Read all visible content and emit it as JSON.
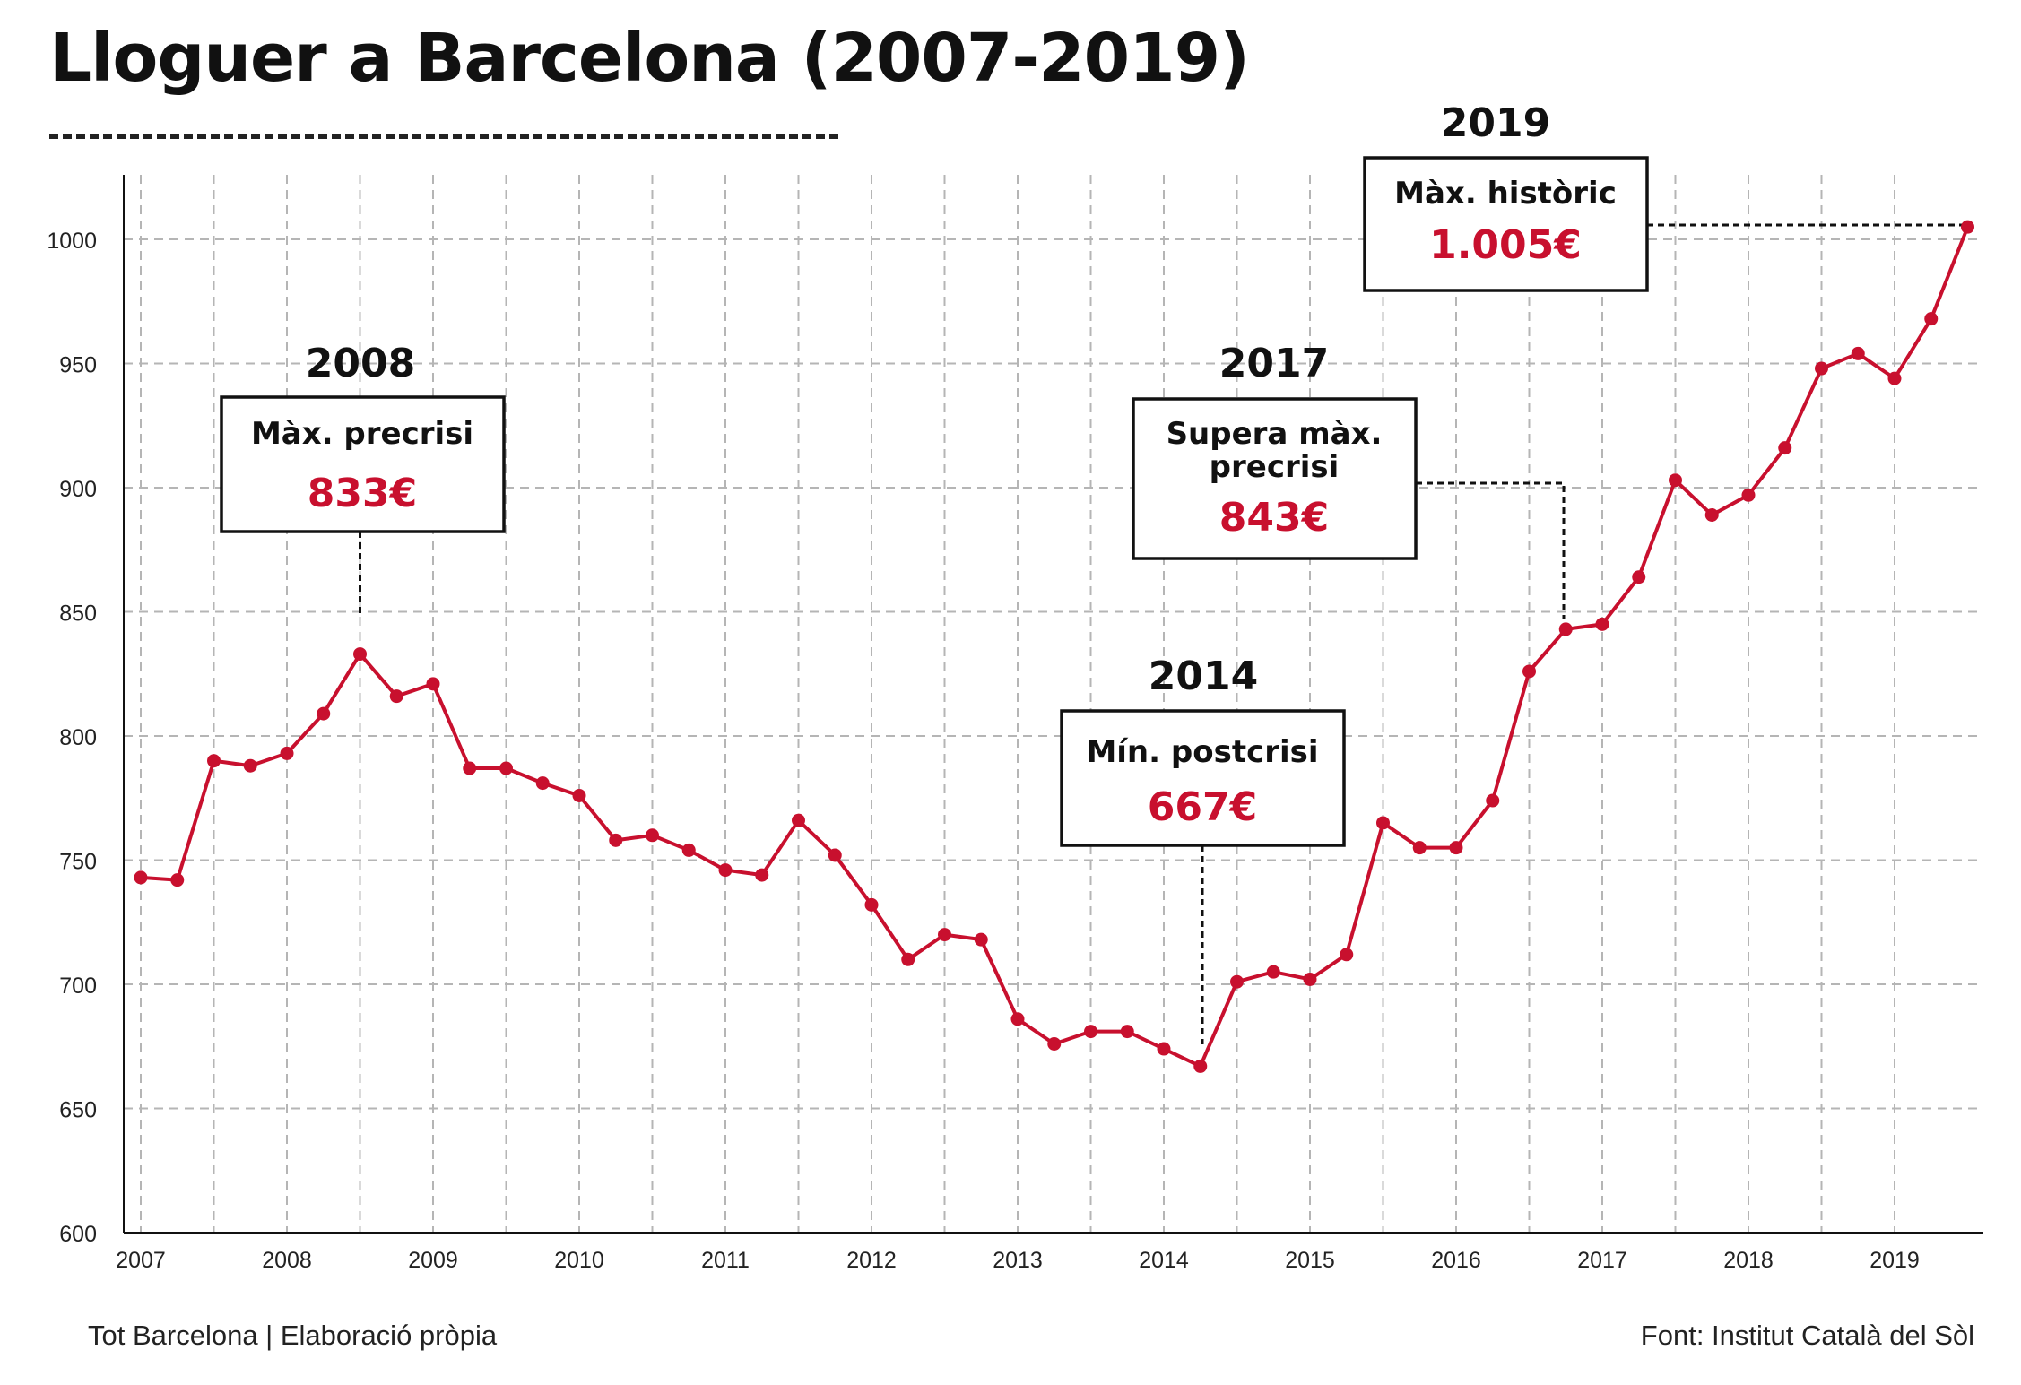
{
  "title": "Lloguer a Barcelona (2007-2019)",
  "footer": {
    "credit": "Tot Barcelona | Elaboració pròpia",
    "source": "Font: Institut Català del Sòl"
  },
  "colors": {
    "line": "#c8102e",
    "accent": "#c8102e",
    "text": "#111111",
    "grid": "#b5b5b5"
  },
  "chart_data": {
    "type": "line",
    "title": "Lloguer a Barcelona (2007-2019)",
    "xlabel": "",
    "ylabel": "",
    "ylim": [
      600,
      1025
    ],
    "yticks": [
      600,
      650,
      700,
      750,
      800,
      850,
      900,
      950,
      1000
    ],
    "xticks": [
      "2007",
      "2008",
      "2009",
      "2010",
      "2011",
      "2012",
      "2013",
      "2014",
      "2015",
      "2016",
      "2017",
      "2018",
      "2019"
    ],
    "grid": true,
    "x": [
      "2007",
      "2007.25",
      "2007.5",
      "2007.75",
      "2008",
      "2008.25",
      "2008.5",
      "2008.75",
      "2009",
      "2009.25",
      "2009.5",
      "2009.75",
      "2010",
      "2010.25",
      "2010.5",
      "2010.75",
      "2011",
      "2011.25",
      "2011.5",
      "2011.75",
      "2012",
      "2012.25",
      "2012.5",
      "2012.75",
      "2013",
      "2013.25",
      "2013.5",
      "2013.75",
      "2014",
      "2014.25",
      "2014.5",
      "2014.75",
      "2015",
      "2015.25",
      "2015.5",
      "2015.75",
      "2016",
      "2016.25",
      "2016.5",
      "2016.75",
      "2017",
      "2017.25",
      "2017.5",
      "2017.75",
      "2018",
      "2018.25",
      "2018.5",
      "2018.75",
      "2019",
      "2019.25",
      "2019.5"
    ],
    "series": [
      {
        "values": [
          743,
          742,
          790,
          788,
          793,
          809,
          833,
          816,
          821,
          787,
          787,
          781,
          776,
          758,
          760,
          754,
          746,
          744,
          766,
          752,
          732,
          710,
          720,
          718,
          686,
          676,
          681,
          681,
          674,
          667,
          701,
          705,
          702,
          712,
          765,
          755,
          755,
          774,
          826,
          843,
          845,
          864,
          903,
          889,
          897,
          916,
          948,
          954,
          944,
          968,
          1005
        ]
      }
    ],
    "annotations": [
      {
        "year": "2008",
        "label": "Màx. precrisi",
        "value": "833€",
        "point_index": 6
      },
      {
        "year": "2014",
        "label": "Mín. postcrisi",
        "value": "667€",
        "point_index": 29
      },
      {
        "year": "2017",
        "label": "Supera màx. precrisi",
        "value": "843€",
        "point_index": 39
      },
      {
        "year": "2019",
        "label": "Màx. històric",
        "value": "1.005€",
        "point_index": 50
      }
    ]
  }
}
